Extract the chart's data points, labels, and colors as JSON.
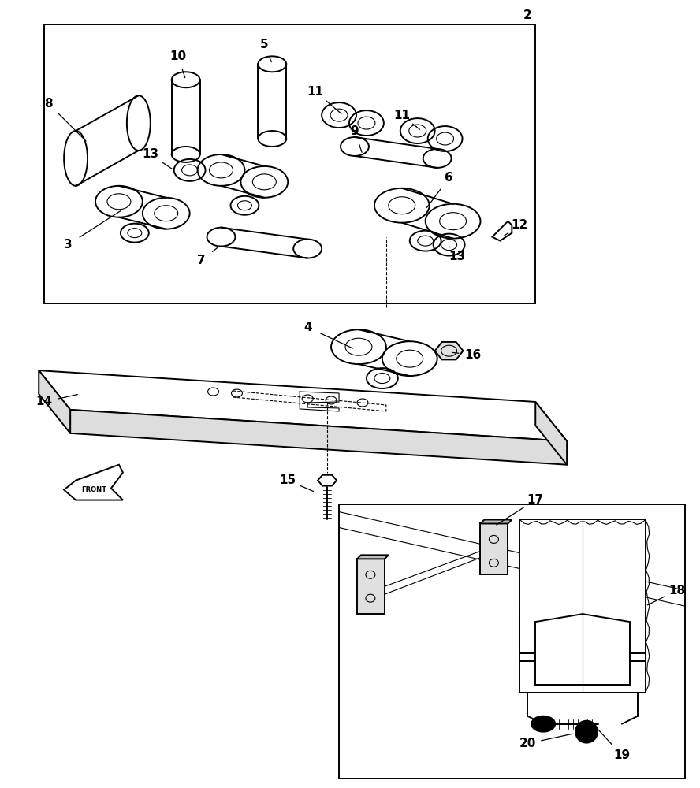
{
  "bg_color": "#ffffff",
  "lc": "#000000",
  "lw": 1.4,
  "tlw": 0.8,
  "fs": 11,
  "fig_w": 8.88,
  "fig_h": 10.0
}
